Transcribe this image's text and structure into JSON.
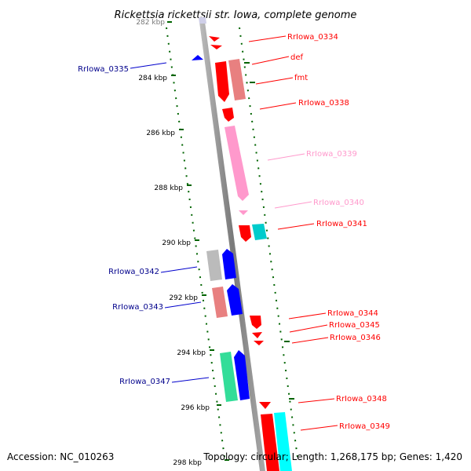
{
  "title": "Rickettsia rickettsii str. Iowa, complete genome",
  "footer": {
    "accession": "Accession: NC_010263",
    "summary": "Topology: circular; Length: 1,268,175 bp; Genes: 1,420"
  },
  "axis_labels": [
    "282 kbp",
    "284 kbp",
    "286 kbp",
    "288 kbp",
    "290 kbp",
    "292 kbp",
    "294 kbp",
    "296 kbp",
    "298 kbp"
  ],
  "gene_labels": {
    "right": [
      "RrIowa_0334",
      "def",
      "fmt",
      "RrIowa_0338",
      "RrIowa_0339",
      "RrIowa_0340",
      "RrIowa_0341",
      "RrIowa_0344",
      "RrIowa_0345",
      "RrIowa_0346",
      "RrIowa_0348",
      "RrIowa_0349"
    ],
    "left": [
      "RrIowa_0335",
      "RrIowa_0342",
      "RrIowa_0343",
      "RrIowa_0347"
    ]
  },
  "colors": {
    "red": "#ff0000",
    "salmon": "#e88080",
    "pink": "#ff99cc",
    "blue": "#0000ff",
    "navy": "#00008b",
    "teal": "#00cccc",
    "cyan": "#00ffff",
    "grey": "#bbbbbb",
    "green": "#33dd99",
    "tick": "#006400",
    "backbone": "#888888"
  }
}
